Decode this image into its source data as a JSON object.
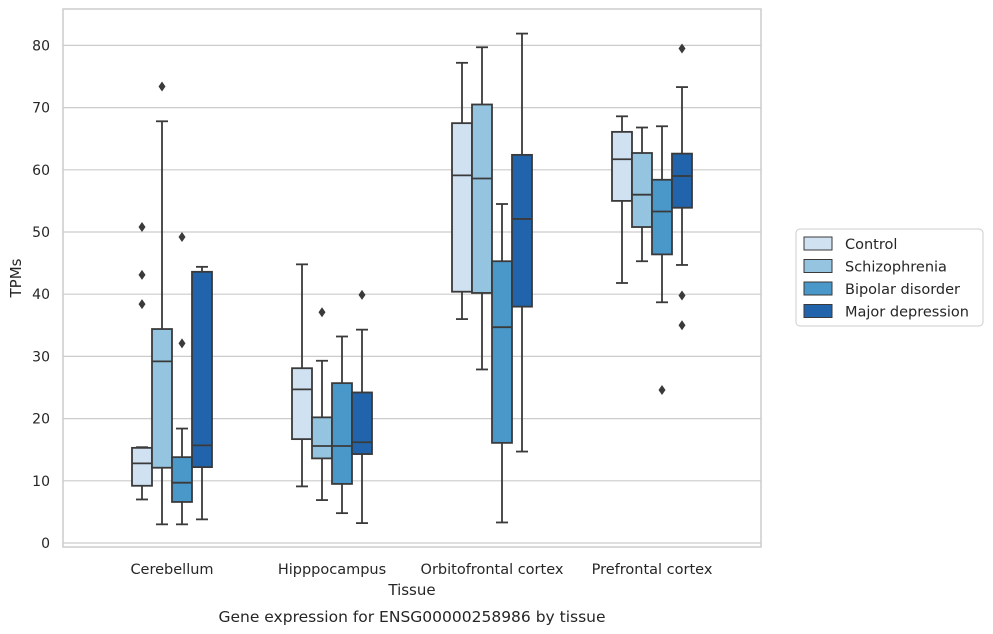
{
  "chart_data": {
    "type": "box",
    "title": "",
    "caption": "Gene expression for ENSG00000258986 by tissue",
    "xlabel": "Tissue",
    "ylabel": "TPMs",
    "ylim": [
      -1,
      85.5
    ],
    "yticks": [
      0,
      10,
      20,
      30,
      40,
      50,
      60,
      70,
      80
    ],
    "grid": "horizontal",
    "legend_position": "right",
    "categories": [
      "Cerebellum",
      "Hipppocampus",
      "Orbitofrontal cortex",
      "Prefrontal cortex"
    ],
    "series": [
      {
        "name": "Control",
        "color": "#d0e1f2",
        "boxes": [
          {
            "whislo": 7.0,
            "q1": 9.2,
            "med": 12.8,
            "q3": 15.3,
            "whishi": 15.4,
            "fliers": [
              38.4,
              43.1,
              50.8
            ]
          },
          {
            "whislo": 9.1,
            "q1": 16.7,
            "med": 24.7,
            "q3": 28.1,
            "whishi": 44.8,
            "fliers": []
          },
          {
            "whislo": 36.0,
            "q1": 40.4,
            "med": 59.1,
            "q3": 67.5,
            "whishi": 77.2,
            "fliers": []
          },
          {
            "whislo": 41.8,
            "q1": 55.0,
            "med": 61.7,
            "q3": 66.1,
            "whishi": 68.6,
            "fliers": []
          }
        ]
      },
      {
        "name": "Schizophrenia",
        "color": "#94c4df",
        "boxes": [
          {
            "whislo": 3.0,
            "q1": 12.1,
            "med": 29.2,
            "q3": 34.4,
            "whishi": 67.8,
            "fliers": [
              73.4
            ]
          },
          {
            "whislo": 6.9,
            "q1": 13.6,
            "med": 15.6,
            "q3": 20.2,
            "whishi": 29.3,
            "fliers": [
              37.1
            ]
          },
          {
            "whislo": 27.9,
            "q1": 40.2,
            "med": 58.6,
            "q3": 70.5,
            "whishi": 79.7,
            "fliers": []
          },
          {
            "whislo": 45.3,
            "q1": 50.8,
            "med": 56.0,
            "q3": 62.7,
            "whishi": 66.8,
            "fliers": []
          }
        ]
      },
      {
        "name": "Bipolar disorder",
        "color": "#4a98c9",
        "boxes": [
          {
            "whislo": 3.0,
            "q1": 6.6,
            "med": 9.7,
            "q3": 13.8,
            "whishi": 18.4,
            "fliers": [
              32.1,
              49.2
            ]
          },
          {
            "whislo": 4.8,
            "q1": 9.5,
            "med": 15.6,
            "q3": 25.7,
            "whishi": 33.2,
            "fliers": []
          },
          {
            "whislo": 3.3,
            "q1": 16.1,
            "med": 34.7,
            "q3": 45.3,
            "whishi": 54.5,
            "fliers": []
          },
          {
            "whislo": 38.7,
            "q1": 46.4,
            "med": 53.3,
            "q3": 58.4,
            "whishi": 67.0,
            "fliers": [
              24.6
            ]
          }
        ]
      },
      {
        "name": "Major depression",
        "color": "#2264ab",
        "boxes": [
          {
            "whislo": 3.8,
            "q1": 12.2,
            "med": 15.7,
            "q3": 43.6,
            "whishi": 44.4,
            "fliers": []
          },
          {
            "whislo": 3.2,
            "q1": 14.3,
            "med": 16.2,
            "q3": 24.2,
            "whishi": 34.3,
            "fliers": [
              39.9
            ]
          },
          {
            "whislo": 14.7,
            "q1": 38.0,
            "med": 52.1,
            "q3": 62.4,
            "whishi": 81.9,
            "fliers": []
          },
          {
            "whislo": 44.7,
            "q1": 53.9,
            "med": 59.0,
            "q3": 62.6,
            "whishi": 73.3,
            "fliers": [
              35.0,
              39.8,
              79.5
            ]
          }
        ]
      }
    ]
  }
}
